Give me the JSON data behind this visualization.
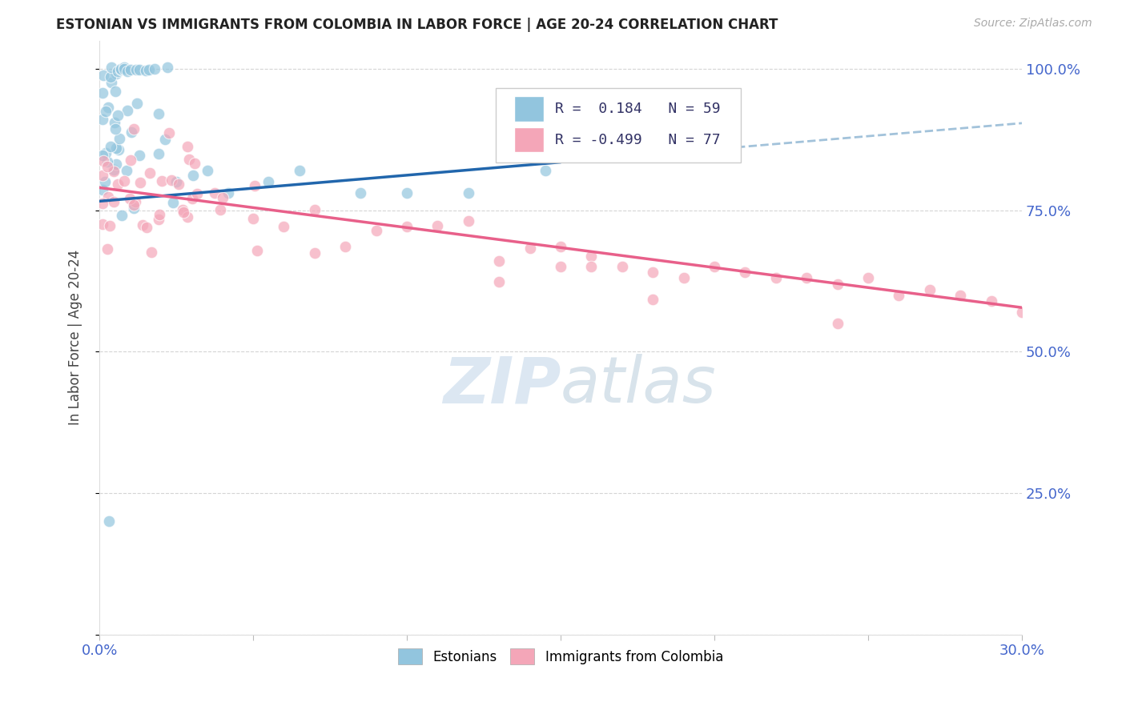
{
  "title": "ESTONIAN VS IMMIGRANTS FROM COLOMBIA IN LABOR FORCE | AGE 20-24 CORRELATION CHART",
  "source": "Source: ZipAtlas.com",
  "ylabel": "In Labor Force | Age 20-24",
  "x_min": 0.0,
  "x_max": 0.3,
  "y_min": 0.0,
  "y_max": 1.05,
  "legend_R_estonian": "0.184",
  "legend_N_estonian": "59",
  "legend_R_colombia": "-0.499",
  "legend_N_colombia": "77",
  "estonian_color": "#92c5de",
  "colombia_color": "#f4a6b8",
  "trend_estonian_color": "#2166ac",
  "trend_colombia_color": "#e8608a",
  "trend_estonian_dash_color": "#92b8d4",
  "watermark_color": "#c5d8ea",
  "background_color": "#ffffff",
  "grid_color": "#d0d0d0",
  "tick_label_color": "#4466cc",
  "title_color": "#222222",
  "source_color": "#aaaaaa",
  "ylabel_color": "#444444",
  "legend_text_color": "#333366",
  "legend_R_color": "#cc3333",
  "legend_N_color": "#3333bb"
}
